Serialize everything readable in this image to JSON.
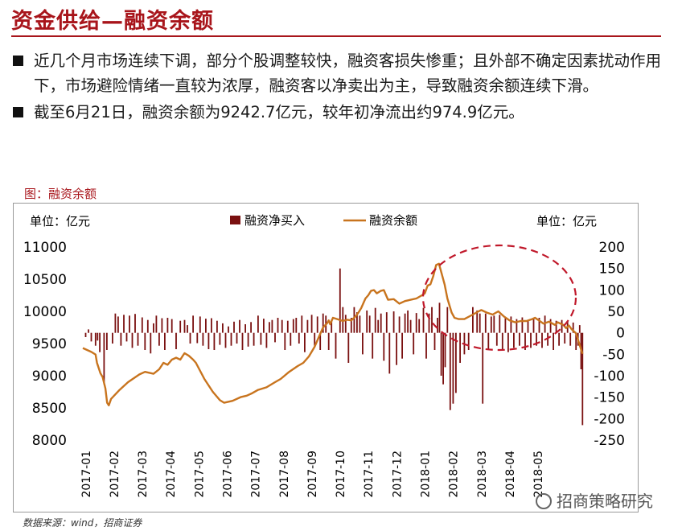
{
  "page": {
    "title": "资金供给—融资余额",
    "bullets": [
      "近几个月市场连续下调，部分个股调整较快，融资客损失惨重；且外部不确定因素扰动作用下，市场避险情绪一直较为浓厚，融资客以净卖出为主，导致融资余额连续下滑。",
      "截至6月21日，融资余额为9242.7亿元，较年初净流出约974.9亿元。"
    ],
    "figure_label": "图：融资余额",
    "source": "数据来源：wind，招商证券",
    "watermark": "招商策略研究"
  },
  "colors": {
    "accent": "#a8151b",
    "bar": "#7a1010",
    "line": "#c8741e",
    "ellipse": "#c0182a"
  },
  "chart_data": {
    "type": "bar+line",
    "unit_left": "单位：亿元",
    "unit_right": "单位：亿元",
    "legend": [
      {
        "name": "融资净买入",
        "kind": "bar",
        "color": "#7a1010"
      },
      {
        "name": "融资余额",
        "kind": "line",
        "color": "#c8741e"
      }
    ],
    "legend_position": "top-center",
    "y_left": {
      "min": 8000,
      "max": 11000,
      "ticks": [
        8000,
        8500,
        9000,
        9500,
        10000,
        10500,
        11000
      ]
    },
    "y_right": {
      "min": -250,
      "max": 200,
      "ticks": [
        -250,
        -200,
        -150,
        -100,
        -50,
        0,
        50,
        100,
        150,
        200
      ]
    },
    "x_labels": [
      "2017-01",
      "2017-02",
      "2017-03",
      "2017-04",
      "2017-05",
      "2017-06",
      "2017-07",
      "2017-08",
      "2017-09",
      "2017-10",
      "2017-11",
      "2017-12",
      "2018-01",
      "2018-02",
      "2018-03",
      "2018-04",
      "2018-05"
    ],
    "x_range": [
      0,
      17.7
    ],
    "balance_series": {
      "name": "融资余额",
      "x": [
        0,
        0.3,
        0.45,
        0.5,
        0.62,
        0.7,
        0.8,
        0.86,
        0.92,
        1.0,
        1.3,
        1.6,
        2.0,
        2.2,
        2.5,
        2.7,
        2.85,
        3.0,
        3.15,
        3.3,
        3.45,
        3.55,
        3.6,
        3.75,
        3.9,
        4.0,
        4.3,
        4.6,
        4.85,
        5.0,
        5.3,
        5.6,
        5.8,
        6.0,
        6.2,
        6.5,
        6.8,
        7.0,
        7.3,
        7.6,
        7.8,
        8.0,
        8.2,
        8.35,
        8.5,
        8.65,
        8.7,
        8.75,
        8.85,
        9.0,
        9.2,
        9.35,
        9.5,
        9.65,
        9.75,
        9.85,
        10.0,
        10.1,
        10.2,
        10.3,
        10.4,
        10.55,
        10.65,
        10.8,
        11.0,
        11.2,
        11.4,
        11.6,
        11.8,
        12.0,
        12.1,
        12.2,
        12.3,
        12.4,
        12.5,
        12.6,
        12.7,
        12.8,
        12.9,
        13.05,
        13.15,
        13.3,
        13.5,
        13.8,
        14.0,
        14.1,
        14.3,
        14.5,
        14.7,
        14.9,
        15.1,
        15.3,
        15.5,
        15.7,
        15.9,
        16.0,
        16.1,
        16.3,
        16.5,
        16.7,
        16.8,
        17.0,
        17.1,
        17.2,
        17.3,
        17.45,
        17.55,
        17.62,
        17.68
      ],
      "values": [
        9430,
        9370,
        9330,
        9200,
        9040,
        8980,
        8800,
        8580,
        8540,
        8640,
        8780,
        8900,
        9020,
        9060,
        9030,
        9100,
        9200,
        9170,
        9250,
        9280,
        9250,
        9320,
        9350,
        9310,
        9250,
        9200,
        8950,
        8750,
        8620,
        8580,
        8610,
        8670,
        8690,
        8730,
        8780,
        8820,
        8900,
        8950,
        9060,
        9150,
        9200,
        9300,
        9450,
        9600,
        9750,
        9820,
        9860,
        9800,
        9900,
        9880,
        9850,
        9870,
        9860,
        9920,
        9980,
        10050,
        10200,
        10250,
        10320,
        10330,
        10280,
        10320,
        10330,
        10180,
        10190,
        10120,
        10160,
        10180,
        10200,
        10250,
        10280,
        10400,
        10420,
        10550,
        10720,
        10740,
        10580,
        10420,
        10200,
        9980,
        9900,
        9880,
        9880,
        9950,
        10000,
        10020,
        9980,
        9950,
        10000,
        9920,
        9860,
        9830,
        9850,
        9850,
        9880,
        9900,
        9870,
        9810,
        9840,
        9790,
        9830,
        9790,
        9740,
        9780,
        9720,
        9660,
        9520,
        9420,
        9340
      ]
    },
    "net_buy_series": {
      "name": "融资净买入",
      "x": [
        0.1,
        0.2,
        0.3,
        0.45,
        0.52,
        0.6,
        0.75,
        0.85,
        1.05,
        1.15,
        1.25,
        1.35,
        1.45,
        1.55,
        1.65,
        1.75,
        1.85,
        1.95,
        2.1,
        2.2,
        2.3,
        2.4,
        2.5,
        2.6,
        2.7,
        2.8,
        2.9,
        3.0,
        3.15,
        3.3,
        3.45,
        3.6,
        3.7,
        3.8,
        3.9,
        4.05,
        4.15,
        4.25,
        4.35,
        4.45,
        4.55,
        4.65,
        4.75,
        4.85,
        4.95,
        5.05,
        5.15,
        5.25,
        5.35,
        5.45,
        5.55,
        5.65,
        5.75,
        5.85,
        5.95,
        6.05,
        6.2,
        6.3,
        6.4,
        6.5,
        6.6,
        6.7,
        6.8,
        6.9,
        7.05,
        7.15,
        7.25,
        7.35,
        7.45,
        7.55,
        7.65,
        7.75,
        7.85,
        7.95,
        8.1,
        8.2,
        8.3,
        8.4,
        8.5,
        8.6,
        8.7,
        8.8,
        8.95,
        9.1,
        9.2,
        9.3,
        9.4,
        9.5,
        9.6,
        9.7,
        9.8,
        9.9,
        10.05,
        10.15,
        10.25,
        10.35,
        10.45,
        10.55,
        10.65,
        10.75,
        10.85,
        11.0,
        11.1,
        11.2,
        11.3,
        11.4,
        11.5,
        11.6,
        11.7,
        11.8,
        11.9,
        12.05,
        12.15,
        12.25,
        12.35,
        12.45,
        12.55,
        12.62,
        12.68,
        12.75,
        12.82,
        12.9,
        13.0,
        13.1,
        13.2,
        13.35,
        13.5,
        13.65,
        13.8,
        13.95,
        14.05,
        14.15,
        14.25,
        14.35,
        14.45,
        14.55,
        14.65,
        14.75,
        14.85,
        14.95,
        15.05,
        15.15,
        15.25,
        15.35,
        15.45,
        15.55,
        15.65,
        15.75,
        15.85,
        15.95,
        16.05,
        16.15,
        16.25,
        16.35,
        16.45,
        16.55,
        16.65,
        16.75,
        16.85,
        16.95,
        17.05,
        17.15,
        17.25,
        17.35,
        17.45,
        17.52,
        17.58,
        17.63,
        17.68
      ],
      "values": [
        -10,
        8,
        -20,
        -30,
        -18,
        -45,
        -120,
        -40,
        -25,
        45,
        38,
        -30,
        42,
        -20,
        40,
        -35,
        44,
        -30,
        36,
        -40,
        30,
        -48,
        22,
        40,
        -30,
        34,
        -40,
        35,
        32,
        -38,
        28,
        30,
        18,
        -25,
        40,
        -24,
        38,
        -30,
        33,
        -38,
        34,
        -40,
        28,
        -28,
        22,
        -35,
        15,
        -30,
        26,
        -25,
        30,
        -40,
        20,
        -32,
        25,
        -30,
        40,
        -28,
        33,
        -35,
        25,
        30,
        -22,
        35,
        30,
        -40,
        28,
        -30,
        32,
        35,
        -25,
        40,
        -45,
        30,
        42,
        -30,
        38,
        -40,
        45,
        40,
        -40,
        30,
        -60,
        150,
        60,
        42,
        -70,
        35,
        60,
        48,
        40,
        -50,
        52,
        40,
        -60,
        58,
        30,
        45,
        -65,
        48,
        -95,
        50,
        -75,
        38,
        -60,
        45,
        52,
        30,
        -50,
        46,
        32,
        58,
        -60,
        45,
        60,
        -40,
        35,
        70,
        -100,
        -120,
        -80,
        60,
        -180,
        -165,
        -140,
        -70,
        -50,
        -40,
        60,
        52,
        45,
        -165,
        45,
        -40,
        38,
        40,
        -30,
        42,
        -40,
        35,
        -45,
        38,
        -35,
        32,
        -30,
        36,
        -40,
        30,
        -35,
        33,
        -30,
        35,
        -35,
        40,
        -30,
        32,
        -40,
        28,
        -30,
        30,
        -25,
        26,
        -30,
        24,
        -40,
        -30,
        18,
        -85,
        -215
      ]
    },
    "annotation": "dashed ellipse highlighting 2018-01 to 2018-05 decline"
  }
}
